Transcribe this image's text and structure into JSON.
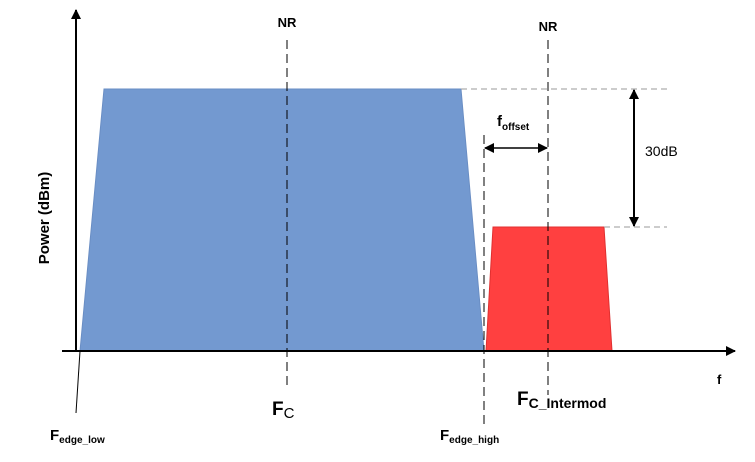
{
  "diagram": {
    "y_axis_label": "Power (dBm)",
    "x_axis_label": "f",
    "nr_label_main": "NR",
    "nr_label_intermod": "NR",
    "fc": {
      "main": "F",
      "sub": "C"
    },
    "fc_intermod": {
      "main": "F",
      "sub": "C_Intermod"
    },
    "fedge_low": {
      "main": "F",
      "sub": "edge_low"
    },
    "fedge_high": {
      "main": "F",
      "sub": "edge_high"
    },
    "foffset": {
      "main": "f",
      "sub": "offset"
    },
    "level_difference": "30dB",
    "colors": {
      "main_band": "#7399D0",
      "intermod_band": "#FF4040",
      "axis": "#000000",
      "guide": "#888888"
    }
  }
}
